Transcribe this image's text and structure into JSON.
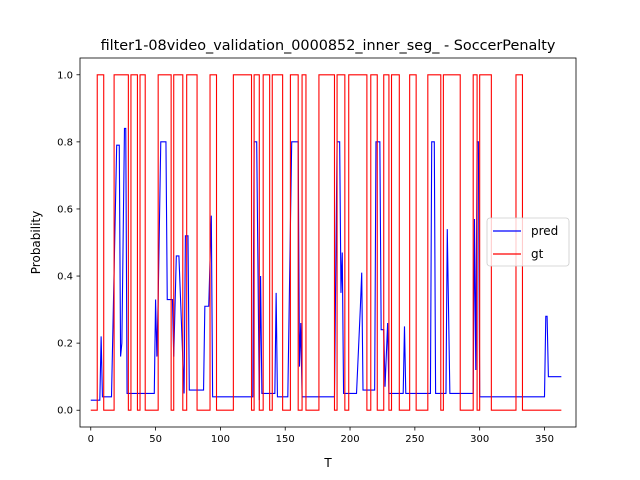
{
  "chart_data": {
    "type": "line",
    "title": "filter1-08video_validation_0000852_inner_seg_ - SoccerPenalty",
    "xlabel": "T",
    "ylabel": "Probability",
    "xlim": [
      -8.3,
      374.3
    ],
    "ylim": [
      -0.05,
      1.05
    ],
    "xticks": [
      0,
      50,
      100,
      150,
      200,
      250,
      300,
      350
    ],
    "yticks": [
      0.0,
      0.2,
      0.4,
      0.6,
      0.8,
      1.0
    ],
    "xtick_labels": [
      "0",
      "50",
      "100",
      "150",
      "200",
      "250",
      "300",
      "350"
    ],
    "ytick_labels": [
      "0.0",
      "0.2",
      "0.4",
      "0.6",
      "0.8",
      "1.0"
    ],
    "legend_position": "center-right",
    "grid": false,
    "series": [
      {
        "name": "pred",
        "color": "#0000ff",
        "points": [
          [
            0,
            0.03
          ],
          [
            7,
            0.03
          ],
          [
            8,
            0.22
          ],
          [
            9,
            0.04
          ],
          [
            16,
            0.04
          ],
          [
            20,
            0.79
          ],
          [
            22,
            0.79
          ],
          [
            23,
            0.16
          ],
          [
            24,
            0.2
          ],
          [
            26,
            0.84
          ],
          [
            27,
            0.84
          ],
          [
            28,
            0.05
          ],
          [
            49,
            0.05
          ],
          [
            50,
            0.33
          ],
          [
            51,
            0.16
          ],
          [
            52,
            0.33
          ],
          [
            54,
            0.8
          ],
          [
            58,
            0.8
          ],
          [
            59,
            0.33
          ],
          [
            63,
            0.33
          ],
          [
            64,
            0.16
          ],
          [
            66,
            0.46
          ],
          [
            68,
            0.46
          ],
          [
            72,
            0.05
          ],
          [
            73,
            0.52
          ],
          [
            75,
            0.52
          ],
          [
            76,
            0.06
          ],
          [
            87,
            0.06
          ],
          [
            88,
            0.31
          ],
          [
            91,
            0.31
          ],
          [
            93,
            0.58
          ],
          [
            94,
            0.04
          ],
          [
            125,
            0.04
          ],
          [
            126,
            0.8
          ],
          [
            128,
            0.8
          ],
          [
            130,
            0.03
          ],
          [
            131,
            0.4
          ],
          [
            132,
            0.05
          ],
          [
            142,
            0.05
          ],
          [
            143,
            0.35
          ],
          [
            144,
            0.04
          ],
          [
            152,
            0.04
          ],
          [
            155,
            0.8
          ],
          [
            160,
            0.8
          ],
          [
            161,
            0.13
          ],
          [
            162,
            0.26
          ],
          [
            163,
            0.04
          ],
          [
            188,
            0.04
          ],
          [
            190,
            0.8
          ],
          [
            192,
            0.8
          ],
          [
            193,
            0.35
          ],
          [
            194,
            0.47
          ],
          [
            195,
            0.05
          ],
          [
            205,
            0.05
          ],
          [
            208,
            0.31
          ],
          [
            209,
            0.41
          ],
          [
            210,
            0.06
          ],
          [
            219,
            0.06
          ],
          [
            220,
            0.8
          ],
          [
            223,
            0.8
          ],
          [
            224,
            0.24
          ],
          [
            226,
            0.24
          ],
          [
            227,
            0.07
          ],
          [
            229,
            0.26
          ],
          [
            230,
            0.05
          ],
          [
            241,
            0.05
          ],
          [
            242,
            0.25
          ],
          [
            243,
            0.05
          ],
          [
            262,
            0.05
          ],
          [
            263,
            0.8
          ],
          [
            265,
            0.8
          ],
          [
            266,
            0.05
          ],
          [
            274,
            0.05
          ],
          [
            275,
            0.54
          ],
          [
            277,
            0.05
          ],
          [
            295,
            0.05
          ],
          [
            296,
            0.57
          ],
          [
            297,
            0.12
          ],
          [
            298,
            0.8
          ],
          [
            299,
            0.8
          ],
          [
            300,
            0.04
          ],
          [
            350,
            0.04
          ],
          [
            351,
            0.28
          ],
          [
            352,
            0.28
          ],
          [
            353,
            0.1
          ],
          [
            363,
            0.1
          ]
        ]
      },
      {
        "name": "gt",
        "color": "#ff0000",
        "points": [
          [
            0,
            0.0
          ],
          [
            5,
            0.0
          ],
          [
            5,
            1.0
          ],
          [
            10,
            1.0
          ],
          [
            10,
            0.0
          ],
          [
            18,
            0.0
          ],
          [
            18,
            1.0
          ],
          [
            29,
            1.0
          ],
          [
            29,
            0.0
          ],
          [
            31,
            0.0
          ],
          [
            31,
            1.0
          ],
          [
            36,
            1.0
          ],
          [
            36,
            0.0
          ],
          [
            38,
            0.0
          ],
          [
            38,
            1.0
          ],
          [
            42,
            1.0
          ],
          [
            42,
            0.0
          ],
          [
            52,
            0.0
          ],
          [
            52,
            1.0
          ],
          [
            62,
            1.0
          ],
          [
            62,
            0.0
          ],
          [
            64,
            0.0
          ],
          [
            64,
            1.0
          ],
          [
            71,
            1.0
          ],
          [
            71,
            0.0
          ],
          [
            74,
            0.0
          ],
          [
            74,
            1.0
          ],
          [
            82,
            1.0
          ],
          [
            82,
            0.0
          ],
          [
            92,
            0.0
          ],
          [
            92,
            1.0
          ],
          [
            97,
            1.0
          ],
          [
            97,
            0.0
          ],
          [
            110,
            0.0
          ],
          [
            110,
            1.0
          ],
          [
            124,
            1.0
          ],
          [
            124,
            0.0
          ],
          [
            126,
            0.0
          ],
          [
            126,
            1.0
          ],
          [
            130,
            1.0
          ],
          [
            130,
            0.0
          ],
          [
            133,
            0.0
          ],
          [
            133,
            1.0
          ],
          [
            138,
            1.0
          ],
          [
            138,
            0.0
          ],
          [
            140,
            0.0
          ],
          [
            140,
            1.0
          ],
          [
            148,
            1.0
          ],
          [
            148,
            0.0
          ],
          [
            154,
            0.0
          ],
          [
            154,
            1.0
          ],
          [
            160,
            1.0
          ],
          [
            160,
            0.0
          ],
          [
            163,
            0.0
          ],
          [
            163,
            1.0
          ],
          [
            166,
            1.0
          ],
          [
            166,
            0.0
          ],
          [
            176,
            0.0
          ],
          [
            176,
            1.0
          ],
          [
            188,
            1.0
          ],
          [
            188,
            0.0
          ],
          [
            190,
            0.0
          ],
          [
            190,
            1.0
          ],
          [
            196,
            1.0
          ],
          [
            196,
            0.0
          ],
          [
            199,
            0.0
          ],
          [
            199,
            1.0
          ],
          [
            213,
            1.0
          ],
          [
            213,
            0.0
          ],
          [
            216,
            0.0
          ],
          [
            216,
            1.0
          ],
          [
            221,
            1.0
          ],
          [
            221,
            0.0
          ],
          [
            226,
            0.0
          ],
          [
            226,
            1.0
          ],
          [
            230,
            1.0
          ],
          [
            230,
            0.0
          ],
          [
            232,
            0.0
          ],
          [
            232,
            1.0
          ],
          [
            238,
            1.0
          ],
          [
            238,
            0.0
          ],
          [
            246,
            0.0
          ],
          [
            246,
            1.0
          ],
          [
            251,
            1.0
          ],
          [
            251,
            0.0
          ],
          [
            260,
            0.0
          ],
          [
            260,
            1.0
          ],
          [
            270,
            1.0
          ],
          [
            270,
            0.0
          ],
          [
            272,
            0.0
          ],
          [
            272,
            1.0
          ],
          [
            285,
            1.0
          ],
          [
            285,
            0.0
          ],
          [
            295,
            0.0
          ],
          [
            295,
            1.0
          ],
          [
            298,
            1.0
          ],
          [
            298,
            0.0
          ],
          [
            300,
            0.0
          ],
          [
            300,
            1.0
          ],
          [
            309,
            1.0
          ],
          [
            309,
            0.0
          ],
          [
            328,
            0.0
          ],
          [
            328,
            1.0
          ],
          [
            333,
            1.0
          ],
          [
            333,
            0.0
          ],
          [
            363,
            0.0
          ]
        ]
      }
    ]
  }
}
